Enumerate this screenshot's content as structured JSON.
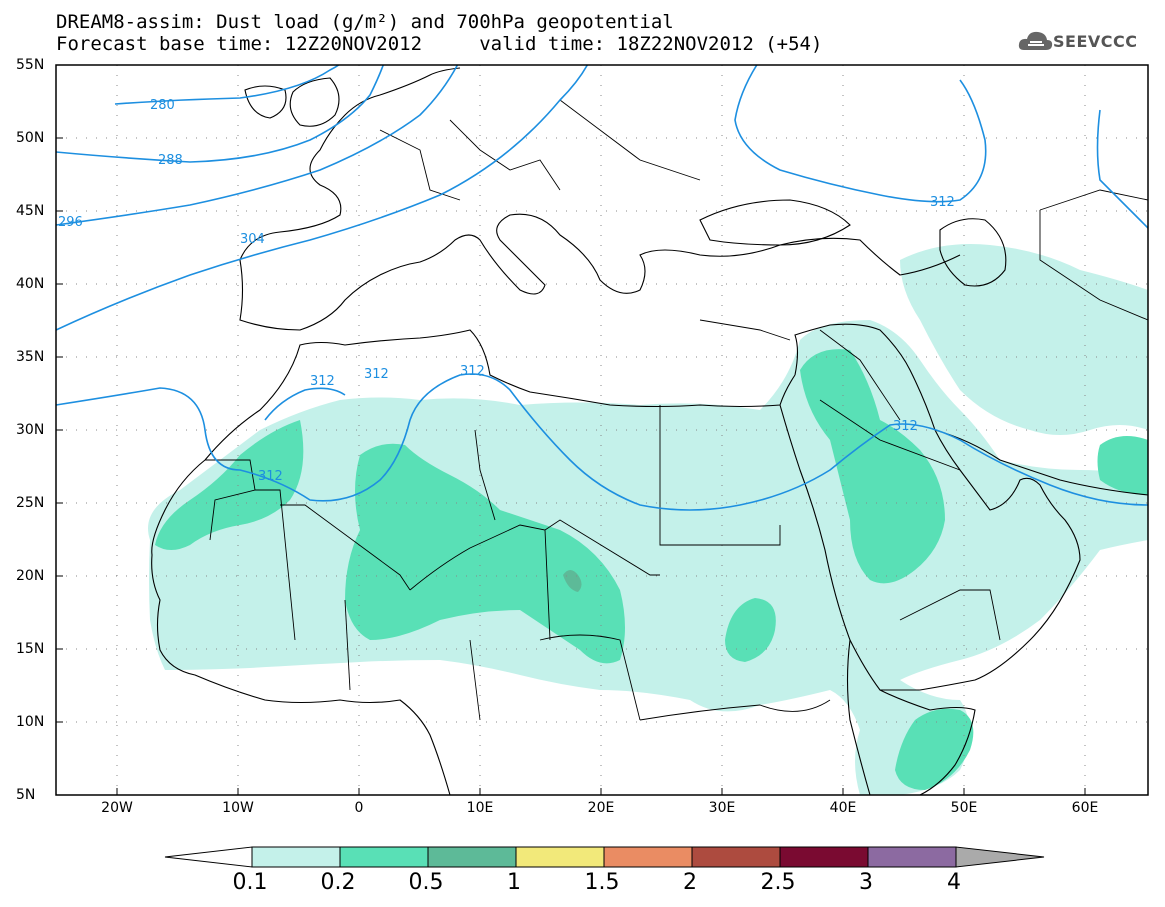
{
  "header": {
    "line1": "DREAM8-assim: Dust load (g/m²) and 700hPa geopotential",
    "line2": "Forecast base time: 12Z20NOV2012     valid time: 18Z22NOV2012 (+54)",
    "logo_text": "SEEVCCC",
    "logo_icon": "cloud-logo-icon"
  },
  "axes": {
    "lat_labels": [
      "55N",
      "50N",
      "45N",
      "40N",
      "35N",
      "30N",
      "25N",
      "20N",
      "15N",
      "10N",
      "5N"
    ],
    "lon_labels": [
      "20W",
      "10W",
      "0",
      "10E",
      "20E",
      "30E",
      "40E",
      "50E",
      "60E"
    ]
  },
  "contours": {
    "color": "#1d8fe0",
    "labels": [
      "280",
      "288",
      "296",
      "304",
      "312",
      "312",
      "312",
      "312",
      "312",
      "312"
    ]
  },
  "colorbar": {
    "ticks": [
      "0.1",
      "0.2",
      "0.5",
      "1",
      "1.5",
      "2",
      "2.5",
      "3",
      "4"
    ],
    "colors": [
      "#c4f1ea",
      "#59e0b6",
      "#5dba98",
      "#f2e97a",
      "#ea8c63",
      "#ad4b3f",
      "#7a0a31",
      "#8c6aa1"
    ],
    "under_color": "#ffffff",
    "over_color": "#aaaaaa"
  },
  "fill_colors": {
    "light": "#c4f1ea",
    "medium": "#59e0b6",
    "dark": "#5dba98"
  }
}
